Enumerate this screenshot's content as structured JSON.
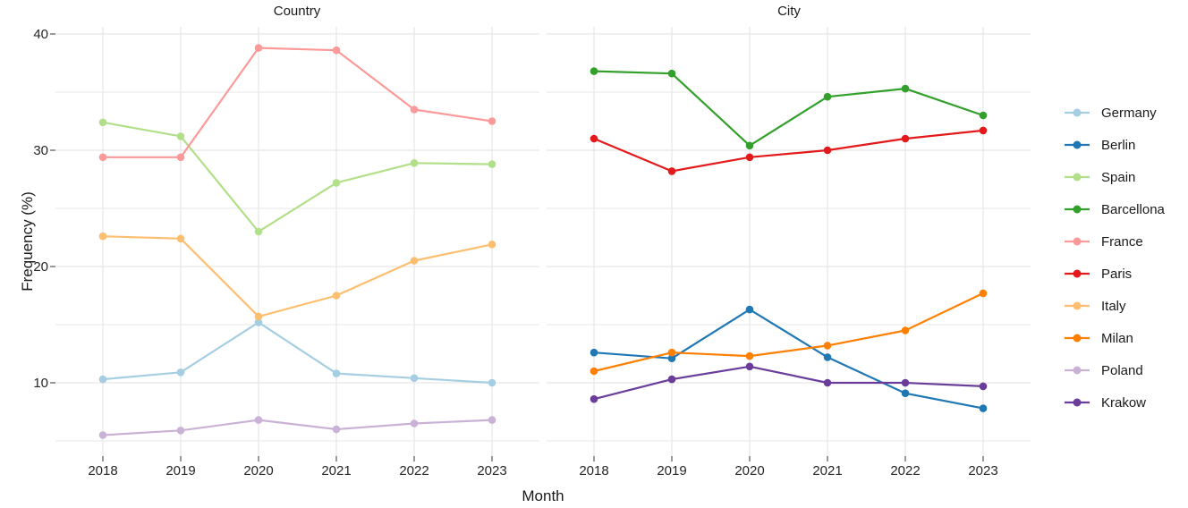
{
  "figure": {
    "xlabel": "Month",
    "ylabel": "Frequency (%)",
    "background": "#ffffff",
    "grid_color": "#e7e7e7",
    "tick_mark_color": "#333333",
    "tick_label_color": "#262626",
    "text_color": "#1a1a1a"
  },
  "chart_data": [
    {
      "type": "line",
      "title": "Country",
      "xlabel": "Month",
      "ylabel": "Frequency (%)",
      "x": [
        2018,
        2019,
        2020,
        2021,
        2022,
        2023
      ],
      "x_tick_labels": [
        "2018",
        "2019",
        "2020",
        "2021",
        "2022",
        "2023"
      ],
      "ylim": [
        3.7,
        40.6
      ],
      "yticks_labeled": [
        10,
        20,
        30,
        40
      ],
      "ygrid_lines": [
        5,
        10,
        15,
        20,
        25,
        30,
        35,
        40
      ],
      "grid": true,
      "series": [
        {
          "name": "Germany",
          "color": "#a6cee3",
          "values": [
            10.3,
            10.9,
            15.2,
            10.8,
            10.4,
            10.0
          ]
        },
        {
          "name": "Spain",
          "color": "#b2df8a",
          "values": [
            32.4,
            31.2,
            23.0,
            27.2,
            28.9,
            28.8
          ]
        },
        {
          "name": "France",
          "color": "#fb9a99",
          "values": [
            29.4,
            29.4,
            38.8,
            38.6,
            33.5,
            32.5
          ]
        },
        {
          "name": "Italy",
          "color": "#fdbf6f",
          "values": [
            22.6,
            22.4,
            15.7,
            17.5,
            20.5,
            21.9
          ]
        },
        {
          "name": "Poland",
          "color": "#cab2d6",
          "values": [
            5.5,
            5.9,
            6.8,
            6.0,
            6.5,
            6.8
          ]
        }
      ]
    },
    {
      "type": "line",
      "title": "City",
      "xlabel": "Month",
      "ylabel": "Frequency (%)",
      "x": [
        2018,
        2019,
        2020,
        2021,
        2022,
        2023
      ],
      "x_tick_labels": [
        "2018",
        "2019",
        "2020",
        "2021",
        "2022",
        "2023"
      ],
      "ylim": [
        3.7,
        40.6
      ],
      "yticks_labeled": [
        10,
        20,
        30,
        40
      ],
      "ygrid_lines": [
        5,
        10,
        15,
        20,
        25,
        30,
        35,
        40
      ],
      "grid": true,
      "series": [
        {
          "name": "Berlin",
          "color": "#1f78b4",
          "values": [
            12.6,
            12.1,
            16.3,
            12.2,
            9.1,
            7.8
          ]
        },
        {
          "name": "Barcellona",
          "color": "#33a02c",
          "values": [
            36.8,
            36.6,
            30.4,
            34.6,
            35.3,
            33.0
          ]
        },
        {
          "name": "Paris",
          "color": "#e31a1c",
          "values": [
            31.0,
            28.2,
            29.4,
            30.0,
            31.0,
            31.7
          ]
        },
        {
          "name": "Milan",
          "color": "#ff7f00",
          "values": [
            11.0,
            12.6,
            12.3,
            13.2,
            14.5,
            17.7
          ]
        },
        {
          "name": "Krakow",
          "color": "#6a3d9a",
          "values": [
            8.6,
            10.3,
            11.4,
            10.0,
            10.0,
            9.7
          ]
        }
      ]
    }
  ],
  "legend": {
    "position": "right",
    "items": [
      {
        "label": "Germany",
        "color": "#a6cee3"
      },
      {
        "label": "Berlin",
        "color": "#1f78b4"
      },
      {
        "label": "Spain",
        "color": "#b2df8a"
      },
      {
        "label": "Barcellona",
        "color": "#33a02c"
      },
      {
        "label": "France",
        "color": "#fb9a99"
      },
      {
        "label": "Paris",
        "color": "#e31a1c"
      },
      {
        "label": "Italy",
        "color": "#fdbf6f"
      },
      {
        "label": "Milan",
        "color": "#ff7f00"
      },
      {
        "label": "Poland",
        "color": "#cab2d6"
      },
      {
        "label": "Krakow",
        "color": "#6a3d9a"
      }
    ]
  }
}
